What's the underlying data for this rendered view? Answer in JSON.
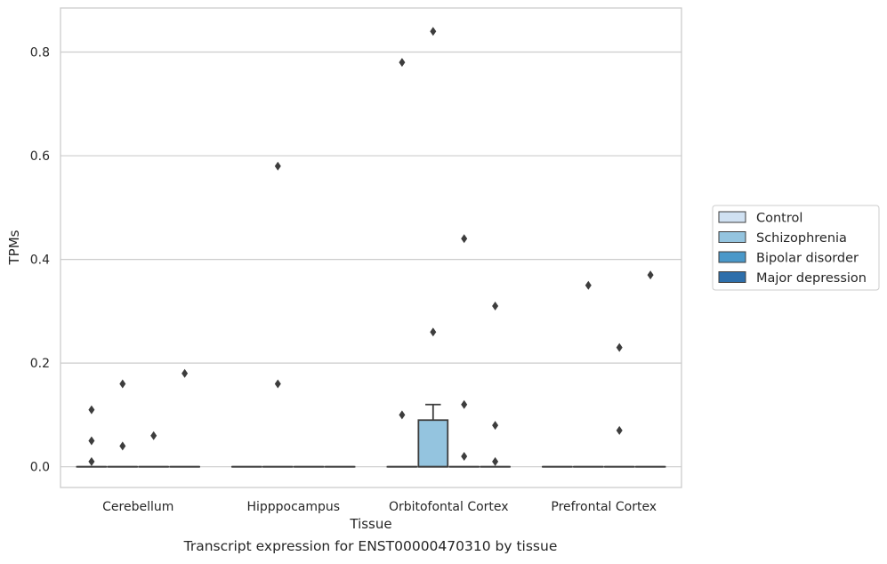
{
  "caption": "Transcript expression for ENST00000470310 by tissue",
  "colors": {
    "Control": "#d0e1f2",
    "Schizophrenia": "#94c4df",
    "Bipolar disorder": "#4a98c9",
    "Major depression": "#2e6fab",
    "grid": "#cccccc",
    "mark": "#3d3d3d"
  },
  "chart_data": {
    "type": "box",
    "xlabel": "Tissue",
    "ylabel": "TPMs",
    "categories": [
      "Cerebellum",
      "Hipppocampus",
      "Orbitofontal Cortex",
      "Prefrontal Cortex"
    ],
    "ylim": [
      -0.04,
      0.885
    ],
    "yticks": [
      0.0,
      0.2,
      0.4,
      0.6,
      0.8
    ],
    "ytick_labels": [
      "0.0",
      "0.2",
      "0.4",
      "0.6",
      "0.8"
    ],
    "grid": true,
    "legend_position": "right",
    "hue_order": [
      "Control",
      "Schizophrenia",
      "Bipolar disorder",
      "Major depression"
    ],
    "series": [
      {
        "name": "Control",
        "boxes": [
          {
            "category": "Cerebellum",
            "q1": 0,
            "median": 0,
            "q3": 0,
            "whisker_low": 0,
            "whisker_high": 0,
            "outliers": [
              0.01,
              0.05,
              0.11
            ]
          },
          {
            "category": "Hipppocampus",
            "q1": 0,
            "median": 0,
            "q3": 0,
            "whisker_low": 0,
            "whisker_high": 0,
            "outliers": []
          },
          {
            "category": "Orbitofontal Cortex",
            "q1": 0,
            "median": 0,
            "q3": 0,
            "whisker_low": 0,
            "whisker_high": 0,
            "outliers": [
              0.1,
              0.78
            ]
          },
          {
            "category": "Prefrontal Cortex",
            "q1": 0,
            "median": 0,
            "q3": 0,
            "whisker_low": 0,
            "whisker_high": 0,
            "outliers": []
          }
        ]
      },
      {
        "name": "Schizophrenia",
        "boxes": [
          {
            "category": "Cerebellum",
            "q1": 0,
            "median": 0,
            "q3": 0,
            "whisker_low": 0,
            "whisker_high": 0,
            "outliers": [
              0.04,
              0.16
            ]
          },
          {
            "category": "Hipppocampus",
            "q1": 0,
            "median": 0,
            "q3": 0,
            "whisker_low": 0,
            "whisker_high": 0,
            "outliers": [
              0.16,
              0.58
            ]
          },
          {
            "category": "Orbitofontal Cortex",
            "q1": 0,
            "median": 0,
            "q3": 0.09,
            "whisker_low": 0,
            "whisker_high": 0.12,
            "outliers": [
              0.26,
              0.84
            ]
          },
          {
            "category": "Prefrontal Cortex",
            "q1": 0,
            "median": 0,
            "q3": 0,
            "whisker_low": 0,
            "whisker_high": 0,
            "outliers": [
              0.35
            ]
          }
        ]
      },
      {
        "name": "Bipolar disorder",
        "boxes": [
          {
            "category": "Cerebellum",
            "q1": 0,
            "median": 0,
            "q3": 0,
            "whisker_low": 0,
            "whisker_high": 0,
            "outliers": [
              0.06
            ]
          },
          {
            "category": "Hipppocampus",
            "q1": 0,
            "median": 0,
            "q3": 0,
            "whisker_low": 0,
            "whisker_high": 0,
            "outliers": []
          },
          {
            "category": "Orbitofontal Cortex",
            "q1": 0,
            "median": 0,
            "q3": 0,
            "whisker_low": 0,
            "whisker_high": 0,
            "outliers": [
              0.02,
              0.12,
              0.44
            ]
          },
          {
            "category": "Prefrontal Cortex",
            "q1": 0,
            "median": 0,
            "q3": 0,
            "whisker_low": 0,
            "whisker_high": 0,
            "outliers": [
              0.07,
              0.23
            ]
          }
        ]
      },
      {
        "name": "Major depression",
        "boxes": [
          {
            "category": "Cerebellum",
            "q1": 0,
            "median": 0,
            "q3": 0,
            "whisker_low": 0,
            "whisker_high": 0,
            "outliers": [
              0.18
            ]
          },
          {
            "category": "Hipppocampus",
            "q1": 0,
            "median": 0,
            "q3": 0,
            "whisker_low": 0,
            "whisker_high": 0,
            "outliers": []
          },
          {
            "category": "Orbitofontal Cortex",
            "q1": 0,
            "median": 0,
            "q3": 0,
            "whisker_low": 0,
            "whisker_high": 0,
            "outliers": [
              0.01,
              0.08,
              0.31
            ]
          },
          {
            "category": "Prefrontal Cortex",
            "q1": 0,
            "median": 0,
            "q3": 0,
            "whisker_low": 0,
            "whisker_high": 0,
            "outliers": [
              0.37
            ]
          }
        ]
      }
    ]
  }
}
